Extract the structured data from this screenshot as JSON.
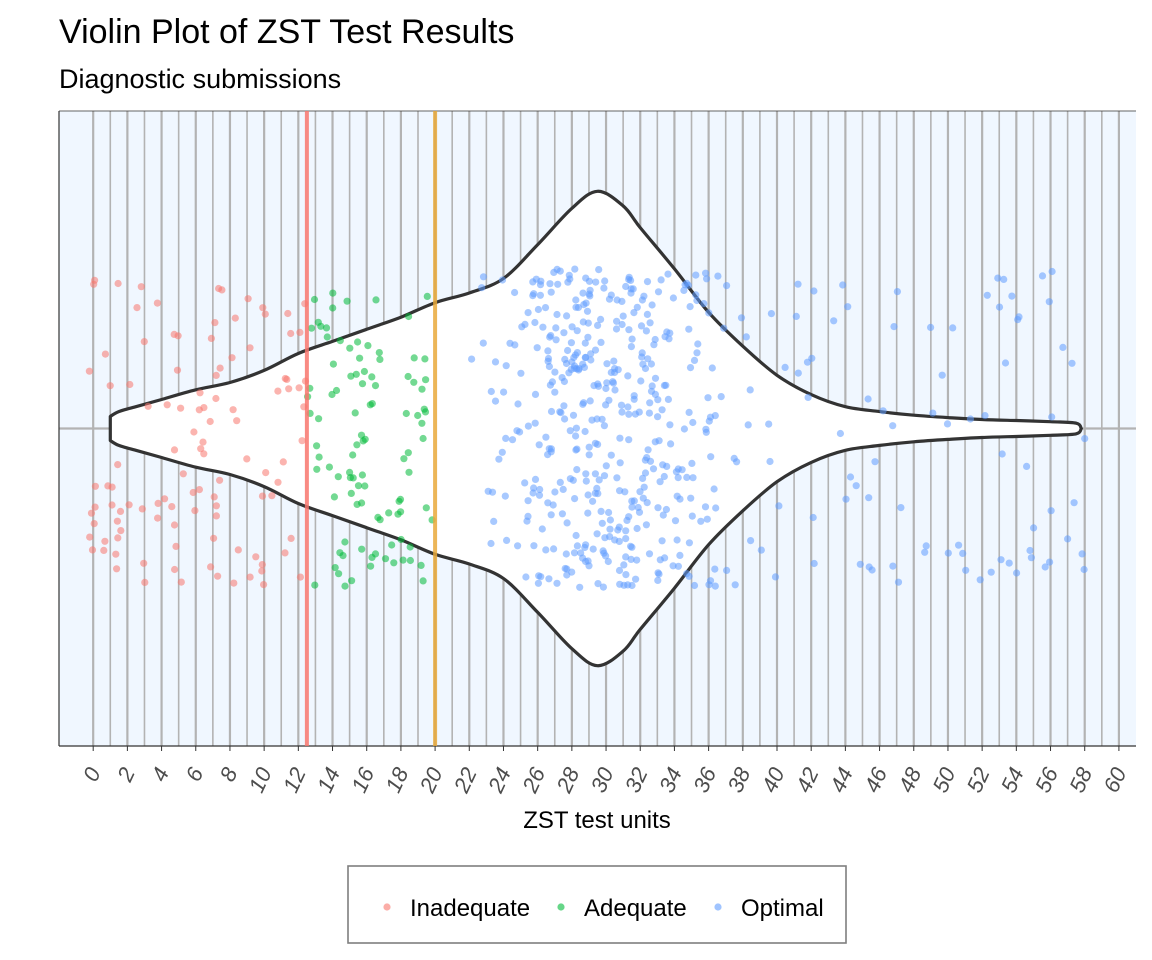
{
  "chart_data": {
    "type": "violin",
    "title": "Violin Plot of ZST Test Results",
    "subtitle": "Diagnostic submissions",
    "xlabel": "ZST test units",
    "ylabel": "",
    "xlim": [
      -2,
      61
    ],
    "x_ticks": [
      0,
      2,
      4,
      6,
      8,
      10,
      12,
      14,
      16,
      18,
      20,
      22,
      24,
      26,
      28,
      30,
      32,
      34,
      36,
      38,
      40,
      42,
      44,
      46,
      48,
      50,
      52,
      54,
      56,
      58,
      60
    ],
    "grid": {
      "vertical_major_step": 2,
      "vertical_minor_step": 1,
      "horizontal_center": true
    },
    "thresholds": [
      {
        "value": 12.5,
        "color": "#f8766d"
      },
      {
        "value": 20,
        "color": "#e9a93b"
      }
    ],
    "violin": {
      "profile": [
        [
          1.0,
          0.05
        ],
        [
          1.5,
          0.07
        ],
        [
          2.5,
          0.09
        ],
        [
          4,
          0.12
        ],
        [
          6,
          0.16
        ],
        [
          8,
          0.19
        ],
        [
          10,
          0.24
        ],
        [
          12,
          0.31
        ],
        [
          14,
          0.36
        ],
        [
          16,
          0.41
        ],
        [
          18,
          0.46
        ],
        [
          20,
          0.52
        ],
        [
          22,
          0.56
        ],
        [
          24,
          0.62
        ],
        [
          26,
          0.76
        ],
        [
          28,
          0.91
        ],
        [
          29.5,
          0.98
        ],
        [
          31,
          0.92
        ],
        [
          32,
          0.83
        ],
        [
          34,
          0.66
        ],
        [
          36,
          0.48
        ],
        [
          38,
          0.34
        ],
        [
          40,
          0.22
        ],
        [
          42,
          0.14
        ],
        [
          44,
          0.09
        ],
        [
          46,
          0.07
        ],
        [
          48,
          0.055
        ],
        [
          50,
          0.045
        ],
        [
          52,
          0.037
        ],
        [
          54,
          0.033
        ],
        [
          56,
          0.028
        ],
        [
          57.5,
          0.022
        ],
        [
          57.8,
          0.0
        ]
      ]
    },
    "series": [
      {
        "name": "Inadequate",
        "color": "#f8766d",
        "range": [
          -0.5,
          12.5
        ],
        "count": 110,
        "spread": 0.66
      },
      {
        "name": "Adequate",
        "color": "#00ba38",
        "range": [
          12.5,
          20
        ],
        "count": 100,
        "spread": 0.66
      },
      {
        "name": "Optimal",
        "color": "#619cff",
        "range": [
          20,
          58
        ],
        "count": 520,
        "spread": 0.66
      }
    ],
    "legend": {
      "position": "bottom",
      "entries": [
        "Inadequate",
        "Adequate",
        "Optimal"
      ]
    },
    "background_color": "#f0f7ff"
  }
}
